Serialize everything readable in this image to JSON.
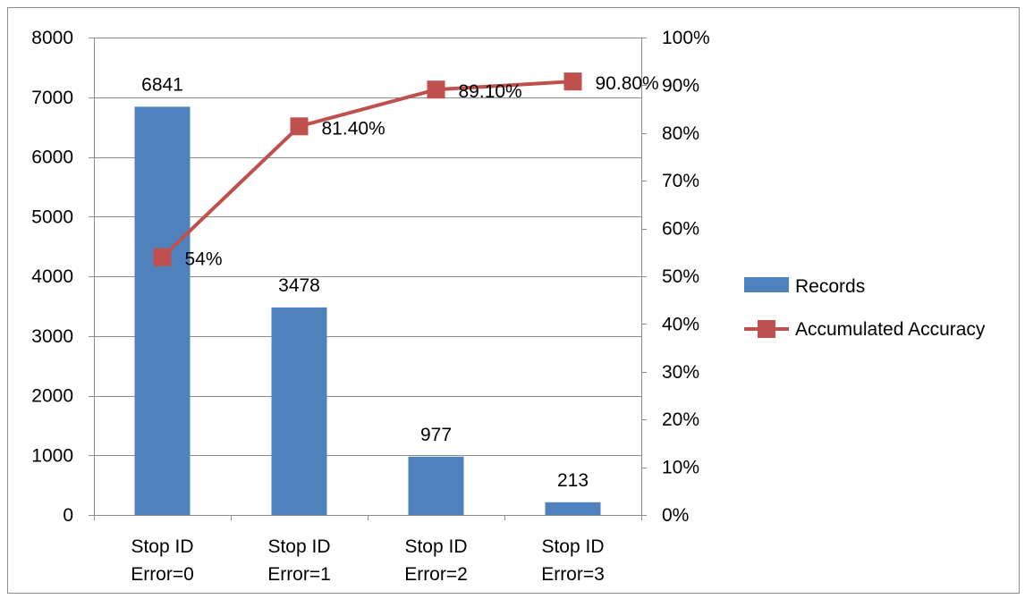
{
  "chart_data": {
    "type": "bar",
    "title": "",
    "categories": [
      [
        "Stop ID",
        "Error=0"
      ],
      [
        "Stop ID",
        "Error=1"
      ],
      [
        "Stop ID",
        "Error=2"
      ],
      [
        "Stop ID",
        "Error=3"
      ]
    ],
    "series": [
      {
        "name": "Records",
        "type": "bar",
        "axis": "left",
        "values": [
          6841,
          3478,
          977,
          213
        ],
        "labels": [
          "6841",
          "3478",
          "977",
          "213"
        ],
        "color": "#4f81bd"
      },
      {
        "name": "Accumulated Accuracy",
        "type": "line",
        "axis": "right",
        "values": [
          0.54,
          0.814,
          0.891,
          0.908
        ],
        "labels": [
          "54%",
          "81.40%",
          "89.10%",
          "90.80%"
        ],
        "color": "#c0504d"
      }
    ],
    "y_left": {
      "min": 0,
      "max": 8000,
      "step": 1000,
      "ticks": [
        "0",
        "1000",
        "2000",
        "3000",
        "4000",
        "5000",
        "6000",
        "7000",
        "8000"
      ]
    },
    "y_right": {
      "min": 0,
      "max": 1,
      "step": 0.1,
      "ticks": [
        "0%",
        "10%",
        "20%",
        "30%",
        "40%",
        "50%",
        "60%",
        "70%",
        "80%",
        "90%",
        "100%"
      ]
    },
    "grid": true,
    "legend_position": "right"
  }
}
